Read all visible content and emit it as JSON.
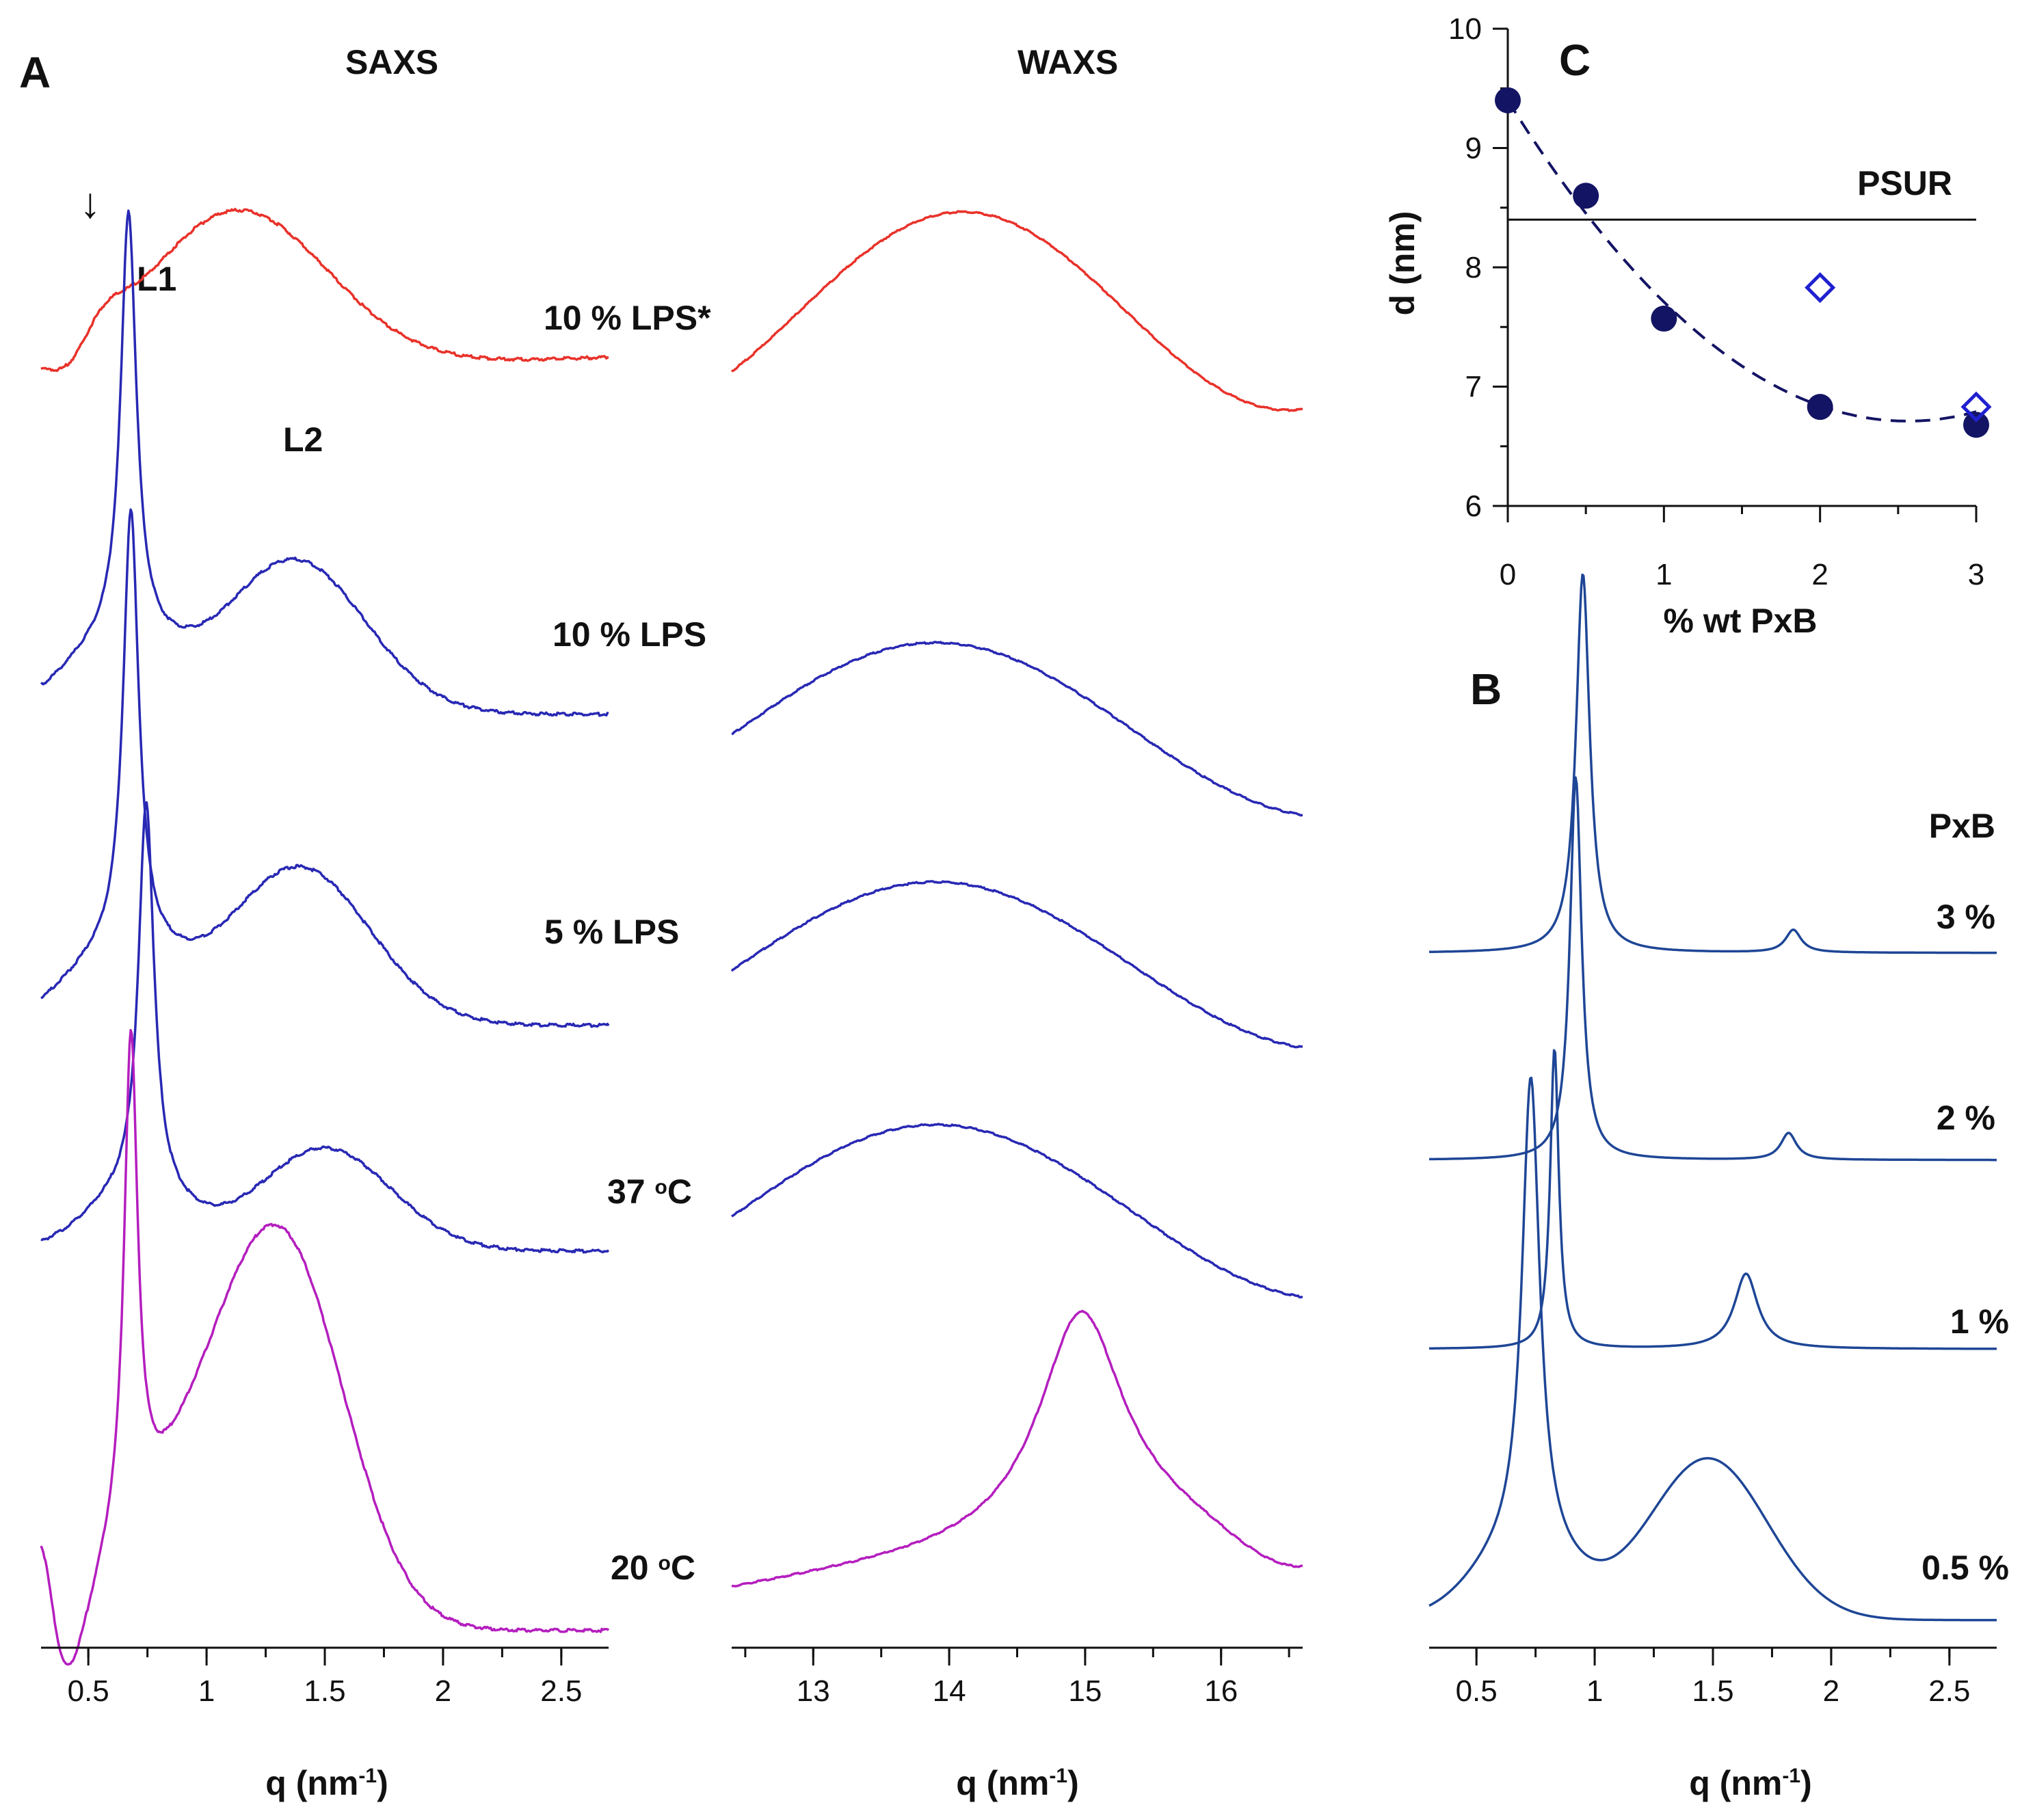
{
  "panel_letters": {
    "a": "A",
    "b": "B",
    "c": "C"
  },
  "headers": {
    "saxs": "SAXS",
    "waxs": "WAXS"
  },
  "annotations": {
    "arrow": "↓",
    "l1": "L1",
    "l2": "L2",
    "psur": "PSUR"
  },
  "colors": {
    "red": "#e8322a",
    "blue": "#2828b4",
    "magenta": "#b41ebe",
    "darkblue": "#1e4696",
    "marker": "#141464",
    "open_marker": "#2020d0"
  },
  "chart_data": [
    {
      "id": "A-SAXS",
      "type": "line",
      "header": "SAXS",
      "xlabel": "q (nm-1)",
      "xlim": [
        0.3,
        2.7
      ],
      "xticks": [
        0.5,
        1,
        1.5,
        2,
        2.5
      ],
      "tick_labels": [
        "0.5",
        "1",
        "1.5",
        "2",
        "2.5"
      ],
      "series": [
        {
          "name": "10 % LPS*",
          "color": "red",
          "peaks": [
            0.56,
            1.13
          ]
        },
        {
          "name": "10 % LPS",
          "color": "blue",
          "peaks": [
            0.67,
            1.37
          ]
        },
        {
          "name": "5 % LPS",
          "color": "blue",
          "peaks": [
            0.68,
            1.39
          ]
        },
        {
          "name": "37 oC",
          "color": "blue",
          "peaks": [
            0.74,
            1.5
          ]
        },
        {
          "name": "20 oC",
          "color": "magenta",
          "peaks": [
            0.68,
            1.34
          ]
        }
      ],
      "labels": {
        "s0": "10 % LPS*",
        "s1": "10 % LPS",
        "s2": "5 % LPS",
        "s3_main": "37 ",
        "s3_sup": "o",
        "s3_unit": "C",
        "s4_main": "20 ",
        "s4_sup": "o",
        "s4_unit": "C"
      }
    },
    {
      "id": "A-WAXS",
      "type": "line",
      "header": "WAXS",
      "xlabel": "q (nm-1)",
      "xlim": [
        12.4,
        16.6
      ],
      "xticks": [
        13,
        14,
        15,
        16
      ],
      "tick_labels": [
        "13",
        "14",
        "15",
        "16"
      ],
      "series": [
        {
          "name": "10 % LPS*",
          "color": "red",
          "peak": 14.1
        },
        {
          "name": "10 % LPS",
          "color": "blue",
          "peak": 13.9
        },
        {
          "name": "5 % LPS",
          "color": "blue",
          "peak": 13.9
        },
        {
          "name": "37 oC",
          "color": "blue",
          "peak": 13.9
        },
        {
          "name": "20 oC",
          "color": "magenta",
          "peak": 14.97
        }
      ]
    },
    {
      "id": "B",
      "type": "line",
      "xlabel": "q (nm-1)",
      "xlim": [
        0.3,
        2.7
      ],
      "xticks": [
        0.5,
        1,
        1.5,
        2,
        2.5
      ],
      "tick_labels": [
        "0.5",
        "1",
        "1.5",
        "2",
        "2.5"
      ],
      "legend_title": "PxB",
      "series": [
        {
          "name": "3 %",
          "peaks": [
            0.95,
            1.84
          ]
        },
        {
          "name": "2 %",
          "peaks": [
            0.92,
            1.82
          ]
        },
        {
          "name": "1 %",
          "peaks": [
            0.83,
            1.64
          ]
        },
        {
          "name": "0.5 %",
          "peaks": [
            0.73,
            1.48
          ]
        }
      ]
    },
    {
      "id": "C",
      "type": "scatter",
      "xlabel": "% wt PxB",
      "ylabel": "d (nm)",
      "xlim": [
        0,
        3
      ],
      "ylim": [
        6,
        10
      ],
      "xticks": [
        0,
        1,
        2,
        3
      ],
      "yticks": [
        6,
        7,
        8,
        9,
        10
      ],
      "x_tick_labels": [
        "0",
        "1",
        "2",
        "3"
      ],
      "y_tick_labels": [
        "6",
        "7",
        "8",
        "9",
        "10"
      ],
      "filled_points": [
        [
          0,
          9.4
        ],
        [
          0.5,
          8.6
        ],
        [
          1,
          7.57
        ],
        [
          2,
          6.83
        ],
        [
          3,
          6.68
        ]
      ],
      "open_points": [
        [
          2,
          7.83
        ],
        [
          3,
          6.83
        ]
      ],
      "reference_line": {
        "label": "PSUR",
        "y": 8.4
      },
      "fit": {
        "type": "quadratic",
        "coefficients": [
          9.4,
          -2.1,
          0.41
        ]
      }
    }
  ]
}
